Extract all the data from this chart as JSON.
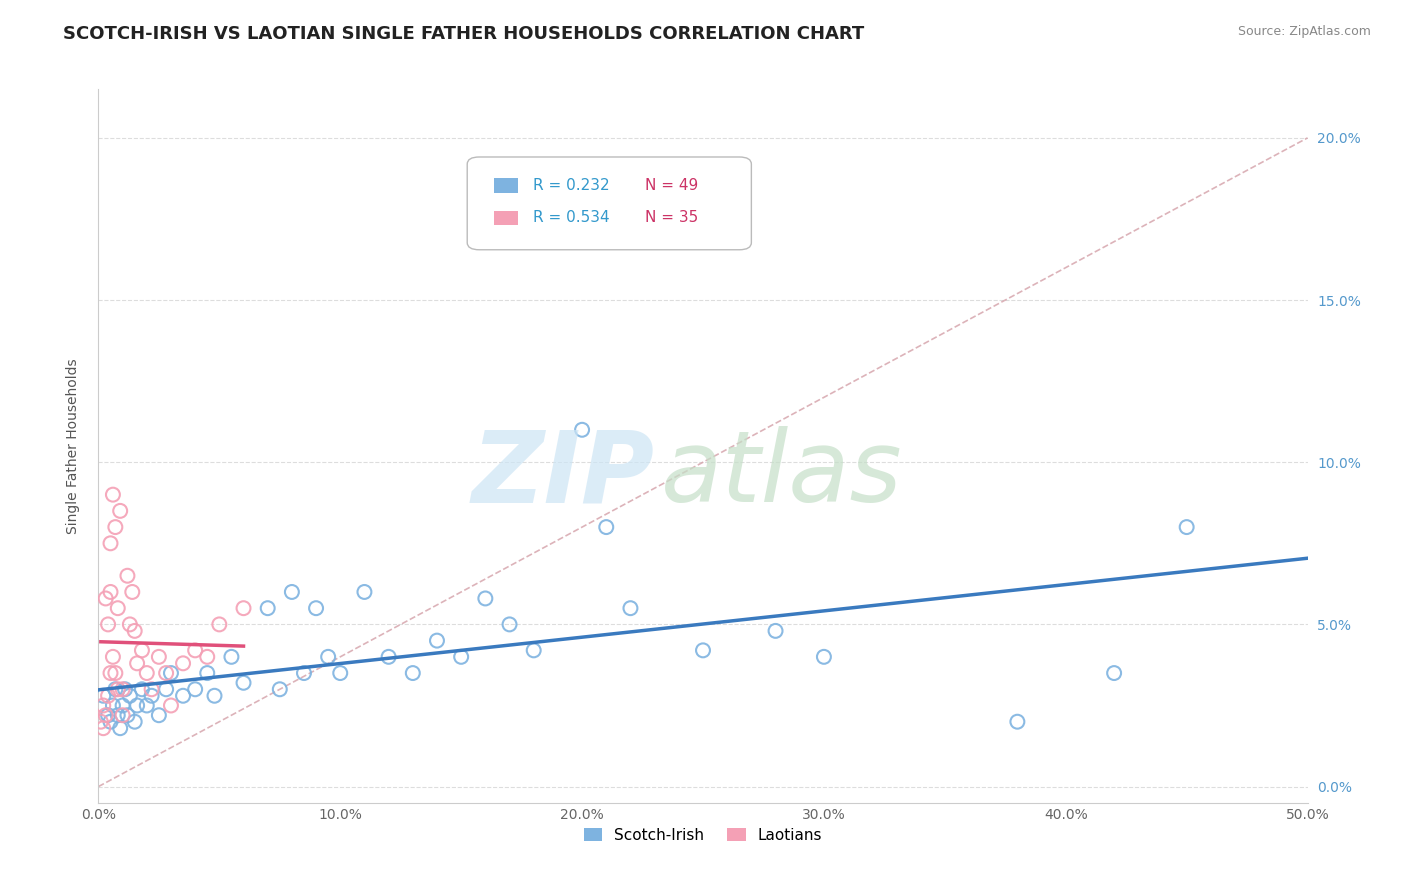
{
  "title": "SCOTCH-IRISH VS LAOTIAN SINGLE FATHER HOUSEHOLDS CORRELATION CHART",
  "source": "Source: ZipAtlas.com",
  "ylabel": "Single Father Households",
  "xlim": [
    0.0,
    0.5
  ],
  "ylim": [
    -0.005,
    0.215
  ],
  "xticks": [
    0.0,
    0.1,
    0.2,
    0.3,
    0.4,
    0.5
  ],
  "xtick_labels": [
    "0.0%",
    "10.0%",
    "20.0%",
    "30.0%",
    "40.0%",
    "50.0%"
  ],
  "yticks": [
    0.0,
    0.05,
    0.1,
    0.15,
    0.2
  ],
  "ytick_labels": [
    "0.0%",
    "5.0%",
    "10.0%",
    "15.0%",
    "20.0%"
  ],
  "scotch_irish_color": "#7eb3e0",
  "laotian_color": "#f4a0b5",
  "scotch_irish_R": 0.232,
  "scotch_irish_N": 49,
  "laotian_R": 0.534,
  "laotian_N": 35,
  "legend_label_1": "Scotch-Irish",
  "legend_label_2": "Laotians",
  "scotch_irish_scatter": [
    [
      0.002,
      0.028
    ],
    [
      0.004,
      0.022
    ],
    [
      0.005,
      0.02
    ],
    [
      0.006,
      0.025
    ],
    [
      0.007,
      0.03
    ],
    [
      0.008,
      0.022
    ],
    [
      0.009,
      0.018
    ],
    [
      0.01,
      0.025
    ],
    [
      0.011,
      0.03
    ],
    [
      0.012,
      0.022
    ],
    [
      0.013,
      0.028
    ],
    [
      0.015,
      0.02
    ],
    [
      0.016,
      0.025
    ],
    [
      0.018,
      0.03
    ],
    [
      0.02,
      0.025
    ],
    [
      0.022,
      0.028
    ],
    [
      0.025,
      0.022
    ],
    [
      0.028,
      0.03
    ],
    [
      0.03,
      0.035
    ],
    [
      0.035,
      0.028
    ],
    [
      0.04,
      0.03
    ],
    [
      0.045,
      0.035
    ],
    [
      0.048,
      0.028
    ],
    [
      0.055,
      0.04
    ],
    [
      0.06,
      0.032
    ],
    [
      0.07,
      0.055
    ],
    [
      0.075,
      0.03
    ],
    [
      0.08,
      0.06
    ],
    [
      0.085,
      0.035
    ],
    [
      0.09,
      0.055
    ],
    [
      0.095,
      0.04
    ],
    [
      0.1,
      0.035
    ],
    [
      0.11,
      0.06
    ],
    [
      0.12,
      0.04
    ],
    [
      0.13,
      0.035
    ],
    [
      0.14,
      0.045
    ],
    [
      0.15,
      0.04
    ],
    [
      0.16,
      0.058
    ],
    [
      0.17,
      0.05
    ],
    [
      0.18,
      0.042
    ],
    [
      0.2,
      0.11
    ],
    [
      0.21,
      0.08
    ],
    [
      0.22,
      0.055
    ],
    [
      0.25,
      0.042
    ],
    [
      0.28,
      0.048
    ],
    [
      0.3,
      0.04
    ],
    [
      0.38,
      0.02
    ],
    [
      0.42,
      0.035
    ],
    [
      0.45,
      0.08
    ]
  ],
  "laotian_scatter": [
    [
      0.001,
      0.02
    ],
    [
      0.002,
      0.018
    ],
    [
      0.002,
      0.025
    ],
    [
      0.003,
      0.022
    ],
    [
      0.003,
      0.058
    ],
    [
      0.004,
      0.05
    ],
    [
      0.004,
      0.028
    ],
    [
      0.005,
      0.06
    ],
    [
      0.005,
      0.035
    ],
    [
      0.005,
      0.075
    ],
    [
      0.006,
      0.09
    ],
    [
      0.006,
      0.04
    ],
    [
      0.007,
      0.035
    ],
    [
      0.007,
      0.08
    ],
    [
      0.008,
      0.03
    ],
    [
      0.008,
      0.055
    ],
    [
      0.009,
      0.085
    ],
    [
      0.01,
      0.03
    ],
    [
      0.01,
      0.022
    ],
    [
      0.012,
      0.065
    ],
    [
      0.013,
      0.05
    ],
    [
      0.014,
      0.06
    ],
    [
      0.015,
      0.048
    ],
    [
      0.016,
      0.038
    ],
    [
      0.018,
      0.042
    ],
    [
      0.02,
      0.035
    ],
    [
      0.022,
      0.03
    ],
    [
      0.025,
      0.04
    ],
    [
      0.028,
      0.035
    ],
    [
      0.03,
      0.025
    ],
    [
      0.035,
      0.038
    ],
    [
      0.04,
      0.042
    ],
    [
      0.045,
      0.04
    ],
    [
      0.05,
      0.05
    ],
    [
      0.06,
      0.055
    ]
  ],
  "ref_line_x": [
    0.0,
    0.5
  ],
  "ref_line_y": [
    0.0,
    0.2
  ],
  "background_color": "#ffffff",
  "grid_color": "#dddddd",
  "title_fontsize": 13,
  "axis_label_fontsize": 10,
  "tick_fontsize": 10,
  "tick_color_right": "#5599cc",
  "legend_R_color": "#3399cc",
  "legend_N_color": "#cc3366",
  "regression_si_color": "#3a7abf",
  "regression_la_color": "#e0507a",
  "ref_line_color": "#d4a0a8"
}
